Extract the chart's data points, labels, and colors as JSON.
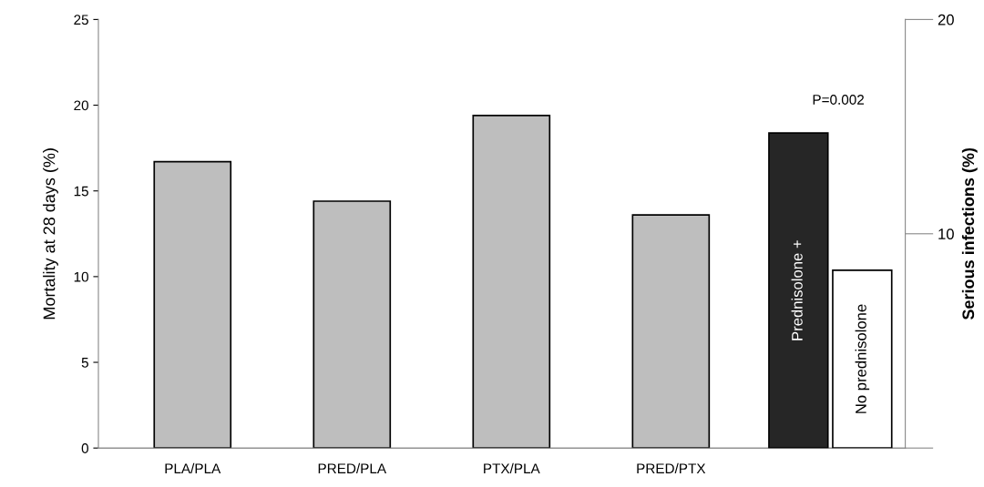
{
  "chart_data": {
    "type": "bar",
    "categories": [
      "PLA/PLA",
      "PRED/PLA",
      "PTX/PLA",
      "PRED/PTX",
      null
    ],
    "series": [
      {
        "color": "#bebebe",
        "values": [
          16.7,
          14.4,
          19.4,
          13.6,
          null
        ]
      },
      {
        "name": "Prednisolone +",
        "color": "#262626",
        "axis": "y2",
        "values": [
          null,
          null,
          null,
          null,
          14.7
        ]
      },
      {
        "name": "No prednisolone",
        "color": "#ffffff",
        "axis": "y2",
        "values": [
          null,
          null,
          null,
          null,
          8.3
        ]
      }
    ],
    "ylabel": "Mortality at 28 days (%)",
    "y2label": "Serious infections (%)",
    "ylim": [
      0,
      25
    ],
    "yticks": [
      0,
      5,
      10,
      15,
      20,
      25
    ],
    "y2lim": [
      0,
      20
    ],
    "y2ticks": [
      {
        "value": 0,
        "label": null
      },
      10,
      20
    ],
    "annotations": [
      "P=0.002"
    ],
    "grid": false,
    "legend": false
  }
}
